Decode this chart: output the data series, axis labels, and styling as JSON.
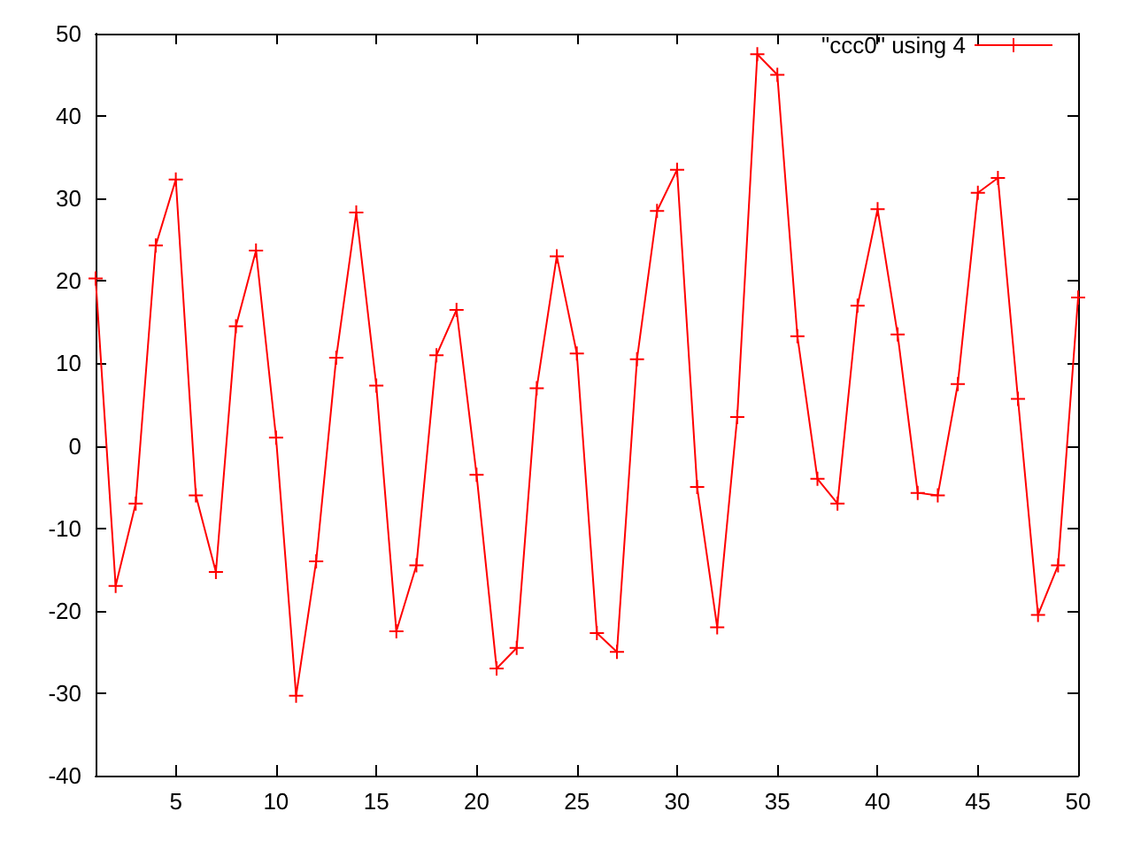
{
  "chart_data": {
    "type": "line",
    "x": [
      1,
      2,
      3,
      4,
      5,
      6,
      7,
      8,
      9,
      10,
      11,
      12,
      13,
      14,
      15,
      16,
      17,
      18,
      19,
      20,
      21,
      22,
      23,
      24,
      25,
      26,
      27,
      28,
      29,
      30,
      31,
      32,
      33,
      34,
      35,
      36,
      37,
      38,
      39,
      40,
      41,
      42,
      43,
      44,
      45,
      46,
      47,
      48,
      49,
      50
    ],
    "series": [
      {
        "name": "\"ccc0\" using 4",
        "color": "#ff0000",
        "values": [
          20.3,
          -17,
          -7,
          24.3,
          32.3,
          -6,
          -15.3,
          14.5,
          23.7,
          1,
          -30.3,
          -14,
          10.7,
          28.3,
          7.3,
          -22.5,
          -14.5,
          11,
          16.5,
          -3.5,
          -27,
          -24.5,
          7,
          23,
          11.2,
          -22.7,
          -25,
          10.5,
          28.5,
          33.5,
          -5,
          -22,
          3.5,
          47.5,
          45,
          13.3,
          -4,
          -7,
          17,
          28.7,
          13.5,
          -5.7,
          -6,
          7.5,
          30.7,
          32.5,
          5.7,
          -20.5,
          -14.5,
          18
        ]
      }
    ],
    "xlim": [
      1,
      50
    ],
    "xticks": [
      5,
      10,
      15,
      20,
      25,
      30,
      35,
      40,
      45,
      50
    ],
    "ylim": [
      -40,
      50
    ],
    "yticks": [
      -40,
      -30,
      -20,
      -10,
      0,
      10,
      20,
      30,
      40,
      50
    ],
    "grid": false,
    "legend": "top right",
    "marker": "cross",
    "line_style": "solid"
  }
}
